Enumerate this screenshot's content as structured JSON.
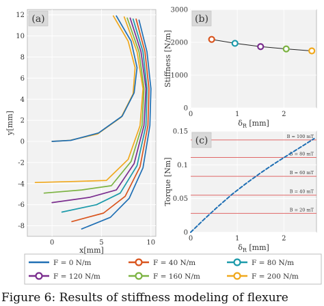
{
  "figure": {
    "caption": "Figure 6: Results of stiffness modeling of flexure",
    "legend": {
      "entries": [
        "F = 0 N/m",
        "F = 40 N/m",
        "F = 80 N/m",
        "F = 120 N/m",
        "F = 160 N/m",
        "F = 200 N/m"
      ],
      "colors": [
        "#1f6fb4",
        "#d9541d",
        "#1b9aaa",
        "#7a2d8e",
        "#7cb342",
        "#f0a81c"
      ],
      "markers": [
        "line",
        "circle",
        "circle",
        "circle",
        "circle",
        "circle"
      ]
    }
  },
  "chart_data": [
    {
      "panel_label": "(a)",
      "type": "line",
      "xlabel": "x[mm]",
      "ylabel": "y[mm]",
      "xlim": [
        -2.5,
        10.5
      ],
      "ylim": [
        -9,
        12.5
      ],
      "x_ticks": [
        0,
        5,
        10
      ],
      "y_ticks": [
        -8,
        -6,
        -4,
        -2,
        0,
        2,
        4,
        6,
        8,
        10,
        12
      ],
      "grid": true,
      "series": [
        {
          "name": "F = 0 N/m",
          "color": "#1f6fb4",
          "x": [
            8.8,
            9.6,
            10.0,
            9.9,
            9.2,
            7.8,
            5.9,
            3.0
          ],
          "y": [
            11.5,
            8.5,
            5.0,
            1.5,
            -2.5,
            -5.4,
            -7.2,
            -8.3
          ]
        },
        {
          "name": "F = 40 N/m",
          "color": "#d9541d",
          "x": [
            8.5,
            9.4,
            9.8,
            9.7,
            8.9,
            7.4,
            5.2,
            2.0
          ],
          "y": [
            11.6,
            8.5,
            5.0,
            1.5,
            -2.4,
            -5.2,
            -6.8,
            -7.6
          ]
        },
        {
          "name": "F = 80 N/m",
          "color": "#1b9aaa",
          "x": [
            8.2,
            9.2,
            9.6,
            9.5,
            8.6,
            6.9,
            4.5,
            1.0
          ],
          "y": [
            11.6,
            8.5,
            5.0,
            1.5,
            -2.3,
            -4.9,
            -6.0,
            -6.7
          ]
        },
        {
          "name": "F = 120 N/m",
          "color": "#7a2d8e",
          "x": [
            7.9,
            9.0,
            9.5,
            9.3,
            8.3,
            6.5,
            3.8,
            0.0
          ],
          "y": [
            11.7,
            8.5,
            5.0,
            1.5,
            -2.1,
            -4.6,
            -5.3,
            -5.8
          ]
        },
        {
          "name": "F = 160 N/m",
          "color": "#7cb342",
          "x": [
            7.6,
            8.8,
            9.3,
            9.1,
            8.0,
            6.0,
            3.0,
            -0.8
          ],
          "y": [
            11.7,
            8.5,
            5.0,
            1.5,
            -1.9,
            -4.2,
            -4.6,
            -4.9
          ]
        },
        {
          "name": "F = 200 N/m",
          "color": "#f0a81c",
          "x": [
            7.3,
            8.6,
            9.2,
            8.9,
            7.7,
            5.5,
            2.2,
            -1.7
          ],
          "y": [
            11.8,
            8.5,
            5.0,
            1.5,
            -1.7,
            -3.7,
            -3.8,
            -3.9
          ]
        },
        {
          "name": "",
          "color": "#f0a81c",
          "x": [
            6.2,
            7.7,
            8.4,
            8.2,
            7.0,
            4.6,
            1.8,
            0.0
          ],
          "y": [
            11.9,
            9.5,
            7.0,
            4.5,
            2.3,
            0.7,
            0.1,
            0.0
          ]
        },
        {
          "name": "",
          "color": "#1f6fb4",
          "x": [
            6.5,
            8.0,
            8.6,
            8.3,
            7.1,
            4.7,
            1.9,
            0.0
          ],
          "y": [
            11.9,
            9.5,
            7.0,
            4.6,
            2.4,
            0.8,
            0.1,
            0.0
          ]
        }
      ]
    },
    {
      "panel_label": "(b)",
      "type": "line",
      "xlabel": "δ",
      "xlabel_sub": "R",
      "xlabel_unit": "[mm]",
      "ylabel": "Stiffness [N/m]",
      "xlim": [
        0,
        2.7
      ],
      "ylim": [
        0,
        3000
      ],
      "x_ticks": [
        0,
        1,
        2
      ],
      "y_ticks": [
        0,
        1000,
        2000,
        3000
      ],
      "grid": true,
      "series": [
        {
          "name": "",
          "color": "#222222",
          "x": [
            0.45,
            0.95,
            1.5,
            2.05,
            2.6
          ],
          "y": [
            2090,
            1970,
            1870,
            1800,
            1740
          ]
        }
      ],
      "markers": [
        {
          "x": 0.45,
          "y": 2090,
          "color": "#d9541d"
        },
        {
          "x": 0.95,
          "y": 1970,
          "color": "#1b9aaa"
        },
        {
          "x": 1.5,
          "y": 1870,
          "color": "#7a2d8e"
        },
        {
          "x": 2.05,
          "y": 1800,
          "color": "#7cb342"
        },
        {
          "x": 2.6,
          "y": 1740,
          "color": "#f0a81c"
        }
      ]
    },
    {
      "panel_label": "(c)",
      "type": "line",
      "xlabel": "δ",
      "xlabel_sub": "R",
      "xlabel_unit": "[mm]",
      "ylabel": "Torque [Nm]",
      "xlim": [
        0,
        2.7
      ],
      "ylim": [
        0,
        0.15
      ],
      "x_ticks": [
        0,
        1,
        2
      ],
      "y_ticks": [
        0,
        0.05,
        0.1,
        0.15
      ],
      "grid": true,
      "series": [
        {
          "name": "",
          "color": "#1f6fb4",
          "dashed": true,
          "x": [
            0,
            0.3,
            0.6,
            0.9,
            1.2,
            1.5,
            1.8,
            2.1,
            2.4,
            2.65
          ],
          "y": [
            0,
            0.02,
            0.039,
            0.057,
            0.073,
            0.088,
            0.102,
            0.115,
            0.128,
            0.139
          ]
        }
      ],
      "reference_lines": [
        {
          "y": 0.137,
          "label": "B = 100 mT"
        },
        {
          "y": 0.111,
          "label": "B = 80 mT"
        },
        {
          "y": 0.083,
          "label": "B = 60 mT"
        },
        {
          "y": 0.055,
          "label": "B = 40 mT"
        },
        {
          "y": 0.028,
          "label": "B = 20 mT"
        }
      ],
      "reference_color": "#e06666"
    }
  ]
}
